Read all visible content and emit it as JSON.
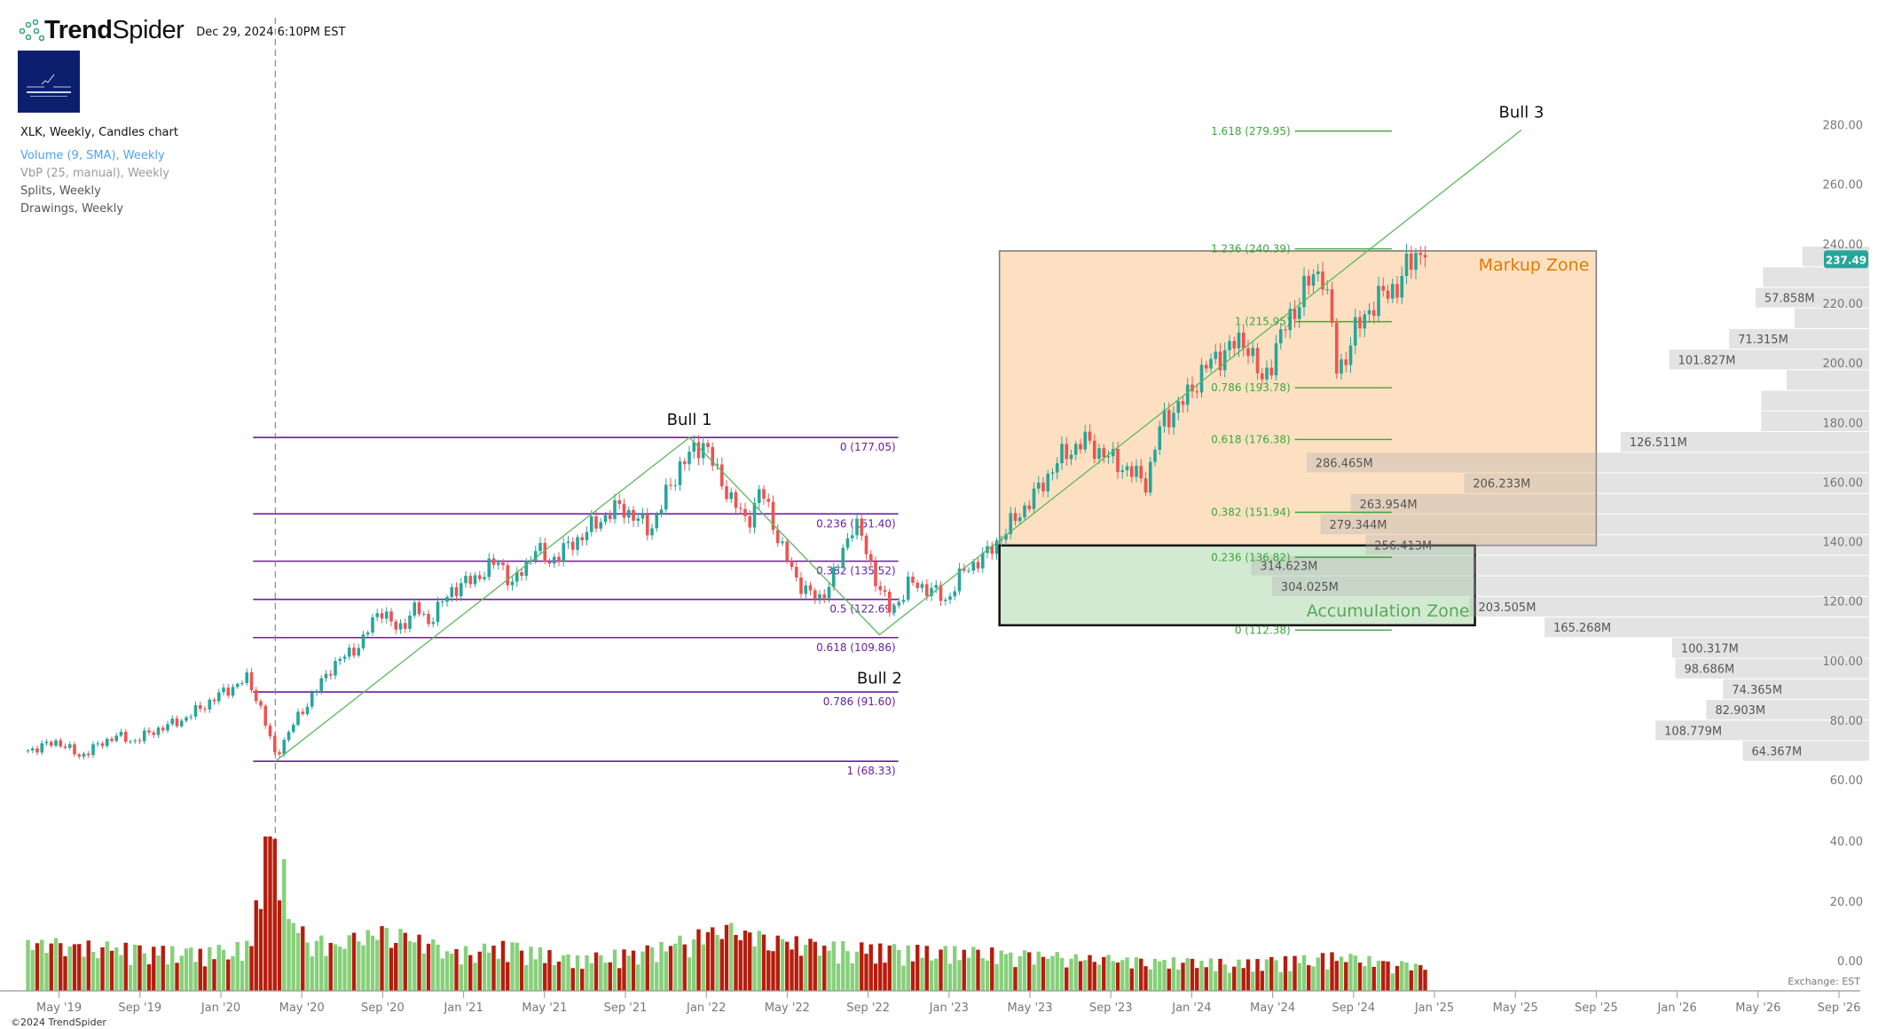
{
  "header": {
    "brand_bold": "Trend",
    "brand_light": "Spider",
    "timestamp": "Dec 29, 2024 6:10PM EST",
    "logo_text": "Capital Research"
  },
  "legend": {
    "main": "XLK, Weekly, Candles chart",
    "volume": "Volume (9, SMA), Weekly",
    "vbp": "VbP (25, manual), Weekly",
    "splits": "Splits, Weekly",
    "drawings": "Drawings, Weekly"
  },
  "footer": {
    "copyright": "©2024 TrendSpider",
    "exchange": "Exchange: EST"
  },
  "colors": {
    "up": "#26a69a",
    "down": "#ef5350",
    "volume_up": "#86d07a",
    "volume_down": "#b71c0c",
    "fib_retracement": "#6a1fa0",
    "fib_extension": "#3aa83a",
    "trendline": "#5cb85c",
    "markup_zone": "#fde0c2",
    "accumulation_zone": "#d3ead2",
    "markup_label": "#e07b00",
    "accumulation_label": "#58a858",
    "price_tag": "#26a69a"
  },
  "chart_data": {
    "type": "candlestick",
    "symbol": "XLK",
    "timeframe": "Weekly",
    "last_price": "237.49",
    "y_axis": {
      "ticks": [
        "280.00",
        "260.00",
        "240.00",
        "220.00",
        "200.00",
        "180.00",
        "160.00",
        "140.00",
        "120.00",
        "100.00",
        "80.00",
        "60.00"
      ],
      "range": [
        60,
        280
      ]
    },
    "volume_axis": {
      "ticks": [
        "40.00",
        "20.00",
        "0.00"
      ]
    },
    "x_axis": {
      "ticks": [
        {
          "label": "May '19",
          "date": "2019-05-01"
        },
        {
          "label": "Sep '19",
          "date": "2019-09-01"
        },
        {
          "label": "Jan '20",
          "date": "2020-01-01"
        },
        {
          "label": "May '20",
          "date": "2020-05-01"
        },
        {
          "label": "Sep '20",
          "date": "2020-09-01"
        },
        {
          "label": "Jan '21",
          "date": "2021-01-01"
        },
        {
          "label": "May '21",
          "date": "2021-05-01"
        },
        {
          "label": "Sep '21",
          "date": "2021-09-01"
        },
        {
          "label": "Jan '22",
          "date": "2022-01-01"
        },
        {
          "label": "May '22",
          "date": "2022-05-01"
        },
        {
          "label": "Sep '22",
          "date": "2022-09-01"
        },
        {
          "label": "Jan '23",
          "date": "2023-01-01"
        },
        {
          "label": "May '23",
          "date": "2023-05-01"
        },
        {
          "label": "Sep '23",
          "date": "2023-09-01"
        },
        {
          "label": "Jan '24",
          "date": "2024-01-01"
        },
        {
          "label": "May '24",
          "date": "2024-05-01"
        },
        {
          "label": "Sep '24",
          "date": "2024-09-01"
        },
        {
          "label": "Jan '25",
          "date": "2025-01-01"
        },
        {
          "label": "May '25",
          "date": "2025-05-01"
        },
        {
          "label": "Sep '25",
          "date": "2025-09-01"
        },
        {
          "label": "Jan '26",
          "date": "2026-01-01"
        },
        {
          "label": "May '26",
          "date": "2026-05-01"
        },
        {
          "label": "Sep '26",
          "date": "2026-09-01"
        }
      ]
    },
    "close_anchors": [
      [
        "2019-03-15",
        72
      ],
      [
        "2019-04-30",
        75
      ],
      [
        "2019-06-01",
        70
      ],
      [
        "2019-07-25",
        77
      ],
      [
        "2019-08-20",
        75
      ],
      [
        "2019-09-27",
        79
      ],
      [
        "2019-11-02",
        82
      ],
      [
        "2019-11-30",
        86
      ],
      [
        "2020-01-01",
        91
      ],
      [
        "2020-02-10",
        96
      ],
      [
        "2020-02-28",
        88
      ],
      [
        "2020-03-22",
        70
      ],
      [
        "2020-04-22",
        82
      ],
      [
        "2020-05-10",
        88
      ],
      [
        "2020-06-15",
        100
      ],
      [
        "2020-07-30",
        108
      ],
      [
        "2020-08-27",
        120
      ],
      [
        "2020-09-23",
        112
      ],
      [
        "2020-10-20",
        120
      ],
      [
        "2020-11-08",
        115
      ],
      [
        "2020-12-14",
        126
      ],
      [
        "2021-01-20",
        130
      ],
      [
        "2021-02-25",
        136
      ],
      [
        "2021-03-13",
        127
      ],
      [
        "2021-04-18",
        140
      ],
      [
        "2021-05-06",
        135
      ],
      [
        "2021-06-21",
        143
      ],
      [
        "2021-07-27",
        150
      ],
      [
        "2021-08-24",
        154
      ],
      [
        "2021-10-08",
        146
      ],
      [
        "2021-10-26",
        155
      ],
      [
        "2021-11-23",
        168
      ],
      [
        "2021-12-29",
        176
      ],
      [
        "2022-01-16",
        165
      ],
      [
        "2022-02-13",
        155
      ],
      [
        "2022-03-01",
        148
      ],
      [
        "2022-03-22",
        160
      ],
      [
        "2022-04-15",
        145
      ],
      [
        "2022-05-12",
        130
      ],
      [
        "2022-06-18",
        122
      ],
      [
        "2022-07-15",
        133
      ],
      [
        "2022-08-11",
        150
      ],
      [
        "2022-09-08",
        132
      ],
      [
        "2022-10-05",
        118
      ],
      [
        "2022-11-01",
        128
      ],
      [
        "2022-12-07",
        126
      ],
      [
        "2022-12-26",
        122
      ],
      [
        "2023-01-22",
        132
      ],
      [
        "2023-02-28",
        138
      ],
      [
        "2023-04-03",
        148
      ],
      [
        "2023-05-09",
        158
      ],
      [
        "2023-06-15",
        170
      ],
      [
        "2023-07-21",
        176
      ],
      [
        "2023-08-17",
        172
      ],
      [
        "2023-09-14",
        168
      ],
      [
        "2023-10-24",
        162
      ],
      [
        "2023-11-16",
        182
      ],
      [
        "2023-12-22",
        190
      ],
      [
        "2024-01-19",
        200
      ],
      [
        "2024-02-25",
        207
      ],
      [
        "2024-03-22",
        210
      ],
      [
        "2024-04-15",
        195
      ],
      [
        "2024-05-15",
        212
      ],
      [
        "2024-06-21",
        228
      ],
      [
        "2024-07-14",
        234
      ],
      [
        "2024-07-27",
        218
      ],
      [
        "2024-08-07",
        198
      ],
      [
        "2024-09-02",
        212
      ],
      [
        "2024-09-29",
        222
      ],
      [
        "2024-11-05",
        228
      ],
      [
        "2024-12-07",
        240
      ],
      [
        "2024-12-23",
        237.49
      ]
    ],
    "volume_profile_anchors": [
      [
        "2019-03-15",
        14
      ],
      [
        "2019-12-01",
        11
      ],
      [
        "2020-02-15",
        13
      ],
      [
        "2020-03-08",
        45
      ],
      [
        "2020-03-29",
        40
      ],
      [
        "2020-04-20",
        18
      ],
      [
        "2020-06-15",
        13
      ],
      [
        "2020-09-10",
        18
      ],
      [
        "2020-12-15",
        11
      ],
      [
        "2021-03-10",
        13
      ],
      [
        "2021-06-15",
        9
      ],
      [
        "2021-10-15",
        12
      ],
      [
        "2022-01-20",
        18
      ],
      [
        "2022-06-15",
        13
      ],
      [
        "2022-10-15",
        12
      ],
      [
        "2023-03-15",
        11
      ],
      [
        "2023-09-15",
        9
      ],
      [
        "2024-03-15",
        8
      ],
      [
        "2024-08-05",
        10
      ],
      [
        "2024-12-23",
        7
      ]
    ],
    "vbp": {
      "rows": 25,
      "price_range": [
        68.33,
        241.3
      ],
      "rows_top_down": [
        {
          "volume_m": 34,
          "label": null
        },
        {
          "volume_m": 54,
          "label": null
        },
        {
          "volume_m": 57.858,
          "label": "57.858M"
        },
        {
          "volume_m": 38,
          "label": null
        },
        {
          "volume_m": 71.315,
          "label": "71.315M"
        },
        {
          "volume_m": 101.827,
          "label": "101.827M"
        },
        {
          "volume_m": 42,
          "label": null
        },
        {
          "volume_m": 55,
          "label": null
        },
        {
          "volume_m": 55,
          "label": null
        },
        {
          "volume_m": 126.511,
          "label": "126.511M"
        },
        {
          "volume_m": 286.465,
          "label": "286.465M"
        },
        {
          "volume_m": 206.233,
          "label": "206.233M"
        },
        {
          "volume_m": 263.954,
          "label": "263.954M"
        },
        {
          "volume_m": 279.344,
          "label": "279.344M"
        },
        {
          "volume_m": 256.413,
          "label": "256.413M"
        },
        {
          "volume_m": 314.623,
          "label": "314.623M"
        },
        {
          "volume_m": 304.025,
          "label": "304.025M"
        },
        {
          "volume_m": 203.505,
          "label": "203.505M"
        },
        {
          "volume_m": 165.268,
          "label": "165.268M"
        },
        {
          "volume_m": 100.317,
          "label": "100.317M"
        },
        {
          "volume_m": 98.686,
          "label": "98.686M"
        },
        {
          "volume_m": 74.365,
          "label": "74.365M"
        },
        {
          "volume_m": 82.903,
          "label": "82.903M"
        },
        {
          "volume_m": 108.779,
          "label": "108.779M"
        },
        {
          "volume_m": 64.367,
          "label": "64.367M"
        }
      ]
    },
    "fib_retracement": {
      "from_date": "2020-02-19",
      "to_date": "2022-10-16",
      "levels": [
        {
          "label": "0 (177.05)",
          "price": 177.05
        },
        {
          "label": "0.236 (151.40)",
          "price": 151.4
        },
        {
          "label": "0.382 (135.52)",
          "price": 135.52
        },
        {
          "label": "0.5 (122.69)",
          "price": 122.69
        },
        {
          "label": "0.618 (109.86)",
          "price": 109.86
        },
        {
          "label": "0.786 (91.60)",
          "price": 91.6
        },
        {
          "label": "1 (68.33)",
          "price": 68.33
        }
      ]
    },
    "fib_extension": {
      "from_date": "2024-06-04",
      "to_date": "2024-10-28",
      "levels": [
        {
          "label": "1.618 (279.95)",
          "price": 279.95
        },
        {
          "label": "1.236 (240.39)",
          "price": 240.39
        },
        {
          "label": "1 (215.95)",
          "price": 215.95
        },
        {
          "label": "0.786 (193.78)",
          "price": 193.78
        },
        {
          "label": "0.618 (176.38)",
          "price": 176.38
        },
        {
          "label": "0.382 (151.94)",
          "price": 151.94
        },
        {
          "label": "0.236 (136.82)",
          "price": 136.82
        },
        {
          "label": "0 (112.38)",
          "price": 112.38
        }
      ]
    },
    "trendline_points": [
      [
        "2020-03-22",
        68.33
      ],
      [
        "2021-12-06",
        177.05
      ],
      [
        "2022-09-18",
        110.8
      ],
      [
        "2025-05-10",
        280.3
      ]
    ],
    "wave_labels": [
      {
        "text": "Bull 1",
        "date": "2021-12-06",
        "price": 177.05,
        "pos": "above"
      },
      {
        "text": "Bull 2",
        "date": "2022-09-18",
        "price": 110.8,
        "pos": "below"
      },
      {
        "text": "Bull 3",
        "date": "2025-05-10",
        "price": 280.3,
        "pos": "above"
      }
    ],
    "zones": [
      {
        "label": "Markup Zone",
        "from_date": "2023-03-16",
        "to_date": "2025-09-01",
        "top": 239.7,
        "bottom": 140.8,
        "kind": "markup"
      },
      {
        "label": "Accumulation Zone",
        "from_date": "2023-03-16",
        "to_date": "2025-03-01",
        "top": 140.8,
        "bottom": 114.0,
        "kind": "accumulation"
      }
    ],
    "split_marker_date": "2020-03-22"
  }
}
